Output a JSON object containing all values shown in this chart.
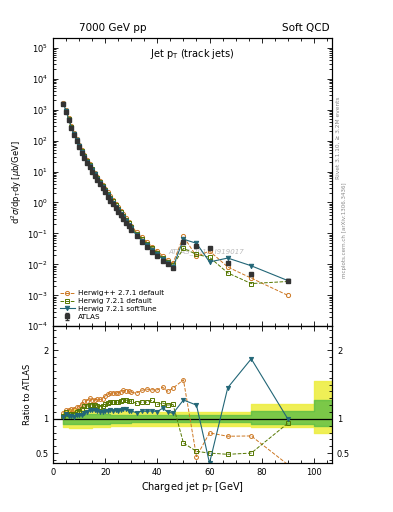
{
  "title_left": "7000 GeV pp",
  "title_right": "Soft QCD",
  "plot_title": "Jet p$_{T}$ (track jets)",
  "ylabel_main": "d$^{2}\\sigma$/dp$_{T}$dy [\\u03bcb/GeV]",
  "ylabel_ratio": "Ratio to ATLAS",
  "xlabel": "Charged jet p$_{T}$ [GeV]",
  "right_label1": "Rivet 3.1.10, \\u2265 3.2M events",
  "right_label2": "mcplots.cern.ch [arXiv:1306.3436]",
  "watermark": "ATLAS_2011_I919017",
  "atlas_pt": [
    4,
    5,
    6,
    7,
    8,
    9,
    10,
    11,
    12,
    13,
    14,
    15,
    16,
    17,
    18,
    19,
    20,
    21,
    22,
    23,
    24,
    25,
    26,
    27,
    28,
    29,
    30,
    32,
    34,
    36,
    38,
    40,
    42,
    44,
    46,
    50,
    55,
    60,
    67,
    76,
    90
  ],
  "atlas_val": [
    1500,
    850,
    460,
    250,
    155,
    96,
    62,
    41,
    27,
    19,
    13.5,
    9.8,
    7.2,
    5.3,
    3.9,
    2.9,
    2.1,
    1.55,
    1.15,
    0.87,
    0.66,
    0.5,
    0.38,
    0.29,
    0.22,
    0.17,
    0.13,
    0.08,
    0.053,
    0.037,
    0.026,
    0.019,
    0.013,
    0.01,
    0.0076,
    0.051,
    0.04,
    0.034,
    0.011,
    0.0048,
    0.003
  ],
  "atlas_err": [
    75,
    45,
    23,
    13,
    8,
    5.5,
    3.6,
    2.3,
    1.6,
    1.1,
    0.8,
    0.58,
    0.43,
    0.32,
    0.24,
    0.18,
    0.14,
    0.1,
    0.078,
    0.059,
    0.046,
    0.036,
    0.028,
    0.021,
    0.016,
    0.012,
    0.0095,
    0.0057,
    0.0038,
    0.0027,
    0.0019,
    0.0014,
    0.00098,
    0.00074,
    0.00057,
    0.0038,
    0.003,
    0.0026,
    0.00084,
    0.00043,
    0.00034
  ],
  "herwig_pp_pt": [
    4,
    5,
    6,
    7,
    8,
    9,
    10,
    11,
    12,
    13,
    14,
    15,
    16,
    17,
    18,
    19,
    20,
    21,
    22,
    23,
    24,
    25,
    26,
    27,
    28,
    29,
    30,
    32,
    34,
    36,
    38,
    40,
    42,
    44,
    46,
    50,
    55,
    60,
    67,
    76,
    90
  ],
  "herwig_pp_val": [
    1620,
    960,
    520,
    285,
    178,
    112,
    73,
    50,
    34,
    24,
    17.5,
    12.5,
    9.2,
    6.8,
    5.0,
    3.75,
    2.8,
    2.1,
    1.58,
    1.2,
    0.91,
    0.69,
    0.53,
    0.41,
    0.31,
    0.24,
    0.18,
    0.11,
    0.075,
    0.053,
    0.037,
    0.027,
    0.019,
    0.014,
    0.011,
    0.08,
    0.018,
    0.027,
    0.0082,
    0.0036,
    0.001
  ],
  "herwig72_pt": [
    4,
    5,
    6,
    7,
    8,
    9,
    10,
    11,
    12,
    13,
    14,
    15,
    16,
    17,
    18,
    19,
    20,
    21,
    22,
    23,
    24,
    25,
    26,
    27,
    28,
    29,
    30,
    32,
    34,
    36,
    38,
    40,
    42,
    44,
    46,
    50,
    55,
    60,
    67,
    76,
    90
  ],
  "herwig72_val": [
    1560,
    930,
    495,
    268,
    167,
    105,
    69,
    47,
    32,
    22.5,
    16.3,
    11.8,
    8.6,
    6.3,
    4.6,
    3.45,
    2.55,
    1.9,
    1.43,
    1.08,
    0.82,
    0.62,
    0.48,
    0.37,
    0.28,
    0.215,
    0.163,
    0.098,
    0.066,
    0.046,
    0.033,
    0.023,
    0.016,
    0.012,
    0.0092,
    0.033,
    0.021,
    0.017,
    0.0053,
    0.0024,
    0.0028
  ],
  "herwig72s_pt": [
    4,
    5,
    6,
    7,
    8,
    9,
    10,
    11,
    12,
    13,
    14,
    15,
    16,
    17,
    18,
    19,
    20,
    21,
    22,
    23,
    24,
    25,
    26,
    27,
    28,
    29,
    30,
    32,
    34,
    36,
    38,
    40,
    42,
    44,
    46,
    50,
    55,
    60,
    67,
    76,
    90
  ],
  "herwig72s_val": [
    1530,
    905,
    478,
    260,
    160,
    101,
    65.5,
    43.5,
    29.2,
    21.0,
    15.2,
    11.0,
    8.1,
    5.9,
    4.3,
    3.2,
    2.35,
    1.73,
    1.3,
    0.97,
    0.74,
    0.56,
    0.43,
    0.33,
    0.25,
    0.19,
    0.145,
    0.087,
    0.059,
    0.041,
    0.029,
    0.021,
    0.015,
    0.011,
    0.0082,
    0.065,
    0.048,
    0.012,
    0.016,
    0.009,
    0.003
  ],
  "color_atlas": "#333333",
  "color_herwig_pp": "#cc7722",
  "color_herwig72": "#557700",
  "color_herwig72s": "#226677",
  "band_yellow_x": [
    4,
    6,
    8,
    10,
    12,
    15,
    18,
    22,
    26,
    30,
    36,
    42,
    50,
    60,
    76,
    100
  ],
  "band_yellow_lo": [
    0.88,
    0.86,
    0.86,
    0.87,
    0.87,
    0.88,
    0.88,
    0.89,
    0.89,
    0.9,
    0.9,
    0.9,
    0.9,
    0.9,
    0.88,
    0.8
  ],
  "band_yellow_hi": [
    1.12,
    1.14,
    1.14,
    1.13,
    1.13,
    1.12,
    1.12,
    1.11,
    1.11,
    1.1,
    1.1,
    1.1,
    1.1,
    1.1,
    1.22,
    1.55
  ],
  "band_green_x": [
    4,
    6,
    8,
    10,
    12,
    15,
    18,
    22,
    26,
    30,
    36,
    42,
    50,
    60,
    76,
    100
  ],
  "band_green_lo": [
    0.93,
    0.92,
    0.92,
    0.92,
    0.93,
    0.93,
    0.93,
    0.94,
    0.94,
    0.95,
    0.95,
    0.95,
    0.95,
    0.95,
    0.93,
    0.89
  ],
  "band_green_hi": [
    1.07,
    1.08,
    1.08,
    1.08,
    1.07,
    1.07,
    1.07,
    1.06,
    1.06,
    1.05,
    1.05,
    1.05,
    1.05,
    1.05,
    1.11,
    1.27
  ],
  "xlim": [
    0,
    107
  ],
  "ylim_main": [
    0.0001,
    200000.0
  ],
  "ylim_ratio": [
    0.35,
    2.35
  ],
  "ratio_yticks": [
    0.5,
    1.0,
    2.0
  ],
  "ratio_yticklabels": [
    "0.5",
    "1",
    "2"
  ]
}
